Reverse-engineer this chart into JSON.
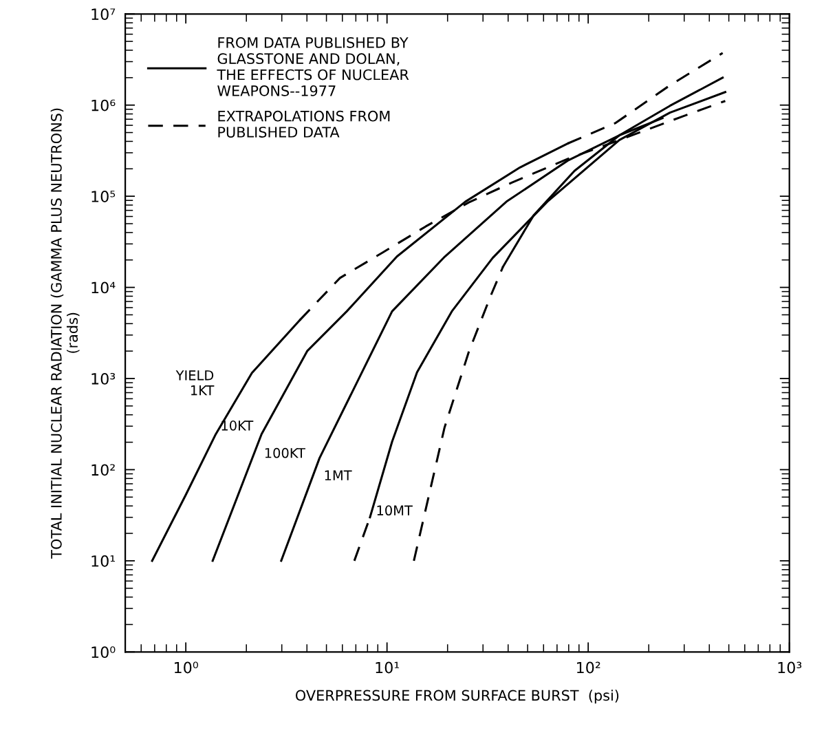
{
  "chart_data": {
    "type": "line",
    "xlabel": "OVERPRESSURE FROM SURFACE BURST  (psi)",
    "ylabel": "TOTAL INITIAL NUCLEAR RADIATION (GAMMA PLUS NEUTRONS)\n(rads)",
    "log": "xy",
    "xlim": [
      0.5,
      1000
    ],
    "ylim": [
      1,
      10000000
    ],
    "xticks": [
      {
        "value": 1,
        "label": "10⁰"
      },
      {
        "value": 10,
        "label": "10¹"
      },
      {
        "value": 100,
        "label": "10²"
      },
      {
        "value": 1000,
        "label": "10³"
      }
    ],
    "yticks": [
      {
        "value": 1,
        "label": "10⁰"
      },
      {
        "value": 10,
        "label": "10¹"
      },
      {
        "value": 100,
        "label": "10²"
      },
      {
        "value": 1000,
        "label": "10³"
      },
      {
        "value": 10000,
        "label": "10⁴"
      },
      {
        "value": 100000,
        "label": "10⁵"
      },
      {
        "value": 1000000,
        "label": "10⁶"
      },
      {
        "value": 10000000,
        "label": "10⁷"
      }
    ],
    "grid": false,
    "legend": "top left",
    "series": [
      {
        "name": "FROM DATA PUBLISHED BY\nGLASSTONE AND DOLAN,\nTHE EFFECTS OF NUCLEAR\nWEAPONS--1977",
        "line_style": "solid",
        "color": "#000000",
        "x": [
          0.68,
          1.0,
          1.41,
          2.13,
          3.68
        ],
        "values": [
          10,
          53,
          246,
          1150,
          4360
        ]
      },
      {
        "name": "EXTRAPOLATIONS FROM\nPUBLISHED DATA",
        "line_style": "dashed",
        "color": "#000000",
        "x": [
          3.68,
          5.84,
          9.54,
          15.6,
          25.5,
          41.7,
          79.1,
          143,
          298,
          480
        ],
        "values": [
          4360,
          12700,
          24200,
          46700,
          85600,
          141000,
          257000,
          414000,
          759000,
          1110000
        ]
      },
      {
        "line_style": "solid",
        "color": "#000000",
        "x": [
          1.36,
          2.38,
          4.01,
          6.31,
          11.2,
          24.5,
          45.8,
          79.1
        ],
        "values": [
          10,
          246,
          2000,
          5460,
          21800,
          87100,
          207000,
          379000
        ]
      },
      {
        "line_style": "dashed",
        "color": "#000000",
        "x": [
          79.1,
          137,
          255,
          466
        ],
        "values": [
          379000,
          638000,
          1650000,
          3730000
        ]
      },
      {
        "line_style": "solid",
        "color": "#000000",
        "x": [
          2.98,
          4.62,
          10.6,
          19.4,
          39.2,
          79.1,
          143,
          255,
          466
        ],
        "values": [
          10,
          134,
          5460,
          21800,
          87100,
          246000,
          467000,
          983000,
          2000000
        ]
      },
      {
        "line_style": "dashed",
        "color": "#000000",
        "x": [
          6.88,
          8.23
        ],
        "values": [
          10,
          30
        ]
      },
      {
        "line_style": "solid",
        "color": "#000000",
        "x": [
          8.23,
          10.6,
          14.1,
          21.0,
          33.5,
          62.6,
          143,
          255,
          480
        ],
        "values": [
          30,
          203,
          1170,
          5460,
          21000,
          87100,
          414000,
          827000,
          1390000
        ]
      },
      {
        "line_style": "dashed",
        "color": "#000000",
        "x": [
          13.6,
          19.3,
          25.5,
          32.8,
          37.7
        ],
        "values": [
          10,
          288,
          1960,
          8130,
          16800
        ]
      },
      {
        "line_style": "solid",
        "color": "#000000",
        "x": [
          37.7,
          53.5,
          85.5,
          143,
          234
        ],
        "values": [
          16800,
          61500,
          190000,
          467000,
          720000
        ]
      }
    ],
    "annotations": [
      "YIELD\n1KT",
      "10KT",
      "100KT",
      "1MT",
      "10MT"
    ]
  }
}
